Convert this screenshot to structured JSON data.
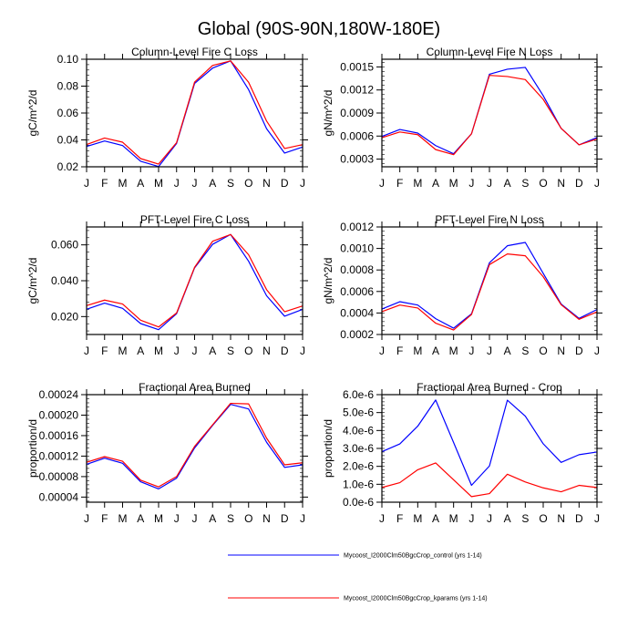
{
  "figure": {
    "title": "Global (90S-90N,180W-180E)"
  },
  "legend": {
    "placement": "bottom-center",
    "entries": [
      {
        "label": "Mycoost_I2000Clm50BgcCrop_control (yrs 1-14)",
        "color": "#0000ff"
      },
      {
        "label": "Mycoost_I2000Clm50BgcCrop_kparams (yrs 1-14)",
        "color": "#ff0000"
      }
    ]
  },
  "chart_data": [
    {
      "type": "line",
      "title": "Column-Level Fire C Loss",
      "xlabel": "",
      "ylabel": "gC/m^2/d",
      "categories": [
        "J",
        "F",
        "M",
        "A",
        "M",
        "J",
        "J",
        "A",
        "S",
        "O",
        "N",
        "D",
        "J"
      ],
      "ylim": [
        0.02,
        0.1
      ],
      "yticks": [
        0.02,
        0.04,
        0.06,
        0.08,
        0.1
      ],
      "ytick_labels": [
        "0.02",
        "0.04",
        "0.06",
        "0.08",
        "0.10"
      ],
      "yminor_per_major": 4,
      "series": [
        {
          "name": "Mycoost_I2000Clm50BgcCrop_control (yrs 1-14)",
          "color": "#0000ff",
          "values": [
            0.0351,
            0.0392,
            0.0358,
            0.0241,
            0.0202,
            0.0374,
            0.082,
            0.0934,
            0.0988,
            0.0774,
            0.0483,
            0.0302,
            0.0347
          ]
        },
        {
          "name": "Mycoost_I2000Clm50BgcCrop_kparams (yrs 1-14)",
          "color": "#ff0000",
          "values": [
            0.0366,
            0.0414,
            0.0383,
            0.0261,
            0.022,
            0.038,
            0.083,
            0.0954,
            0.0988,
            0.0829,
            0.054,
            0.0336,
            0.0365
          ]
        }
      ]
    },
    {
      "type": "line",
      "title": "Column-Level Fire N Loss",
      "xlabel": "",
      "ylabel": "gN/m^2/d",
      "categories": [
        "J",
        "F",
        "M",
        "A",
        "M",
        "J",
        "J",
        "A",
        "S",
        "O",
        "N",
        "D",
        "J"
      ],
      "ylim": [
        0.0002,
        0.0016
      ],
      "yticks": [
        0.0003,
        0.0006,
        0.0009,
        0.0012,
        0.0015
      ],
      "ytick_labels": [
        "0.0003",
        "0.0006",
        "0.0009",
        "0.0012",
        "0.0015"
      ],
      "yminor_per_major": 4,
      "series": [
        {
          "name": "Mycoost_I2000Clm50BgcCrop_control (yrs 1-14)",
          "color": "#0000ff",
          "values": [
            0.000595,
            0.000686,
            0.000639,
            0.000476,
            0.00037,
            0.00063,
            0.001405,
            0.00147,
            0.001494,
            0.001126,
            0.0007,
            0.000486,
            0.000581
          ]
        },
        {
          "name": "Mycoost_I2000Clm50BgcCrop_kparams (yrs 1-14)",
          "color": "#ff0000",
          "values": [
            0.000579,
            0.000653,
            0.000618,
            0.000424,
            0.000358,
            0.00063,
            0.00139,
            0.001375,
            0.001335,
            0.001078,
            0.0007,
            0.000486,
            0.000562
          ]
        }
      ]
    },
    {
      "type": "line",
      "title": "PFT-Level Fire C Loss",
      "xlabel": "",
      "ylabel": "gC/m^2/d",
      "categories": [
        "J",
        "F",
        "M",
        "A",
        "M",
        "J",
        "J",
        "A",
        "S",
        "O",
        "N",
        "D",
        "J"
      ],
      "ylim": [
        0.01,
        0.07
      ],
      "yticks": [
        0.02,
        0.04,
        0.06
      ],
      "ytick_labels": [
        "0.020",
        "0.040",
        "0.060"
      ],
      "yminor_per_major": 4,
      "series": [
        {
          "name": "Mycoost_I2000Clm50BgcCrop_control (yrs 1-14)",
          "color": "#0000ff",
          "values": [
            0.0241,
            0.0275,
            0.0246,
            0.0161,
            0.0127,
            0.0216,
            0.0472,
            0.0603,
            0.0658,
            0.0509,
            0.0316,
            0.0202,
            0.024
          ]
        },
        {
          "name": "Mycoost_I2000Clm50BgcCrop_kparams (yrs 1-14)",
          "color": "#ff0000",
          "values": [
            0.0261,
            0.0292,
            0.027,
            0.018,
            0.0142,
            0.022,
            0.0475,
            0.062,
            0.0658,
            0.0545,
            0.035,
            0.0227,
            0.0259
          ]
        }
      ]
    },
    {
      "type": "line",
      "title": "PFT-Level Fire N Loss",
      "xlabel": "",
      "ylabel": "gN/m^2/d",
      "categories": [
        "J",
        "F",
        "M",
        "A",
        "M",
        "J",
        "J",
        "A",
        "S",
        "O",
        "N",
        "D",
        "J"
      ],
      "ylim": [
        0.0002,
        0.0012
      ],
      "yticks": [
        0.0002,
        0.0004,
        0.0006,
        0.0008,
        0.001,
        0.0012
      ],
      "ytick_labels": [
        "0.0002",
        "0.0004",
        "0.0006",
        "0.0008",
        "0.0010",
        "0.0012"
      ],
      "yminor_per_major": 4,
      "series": [
        {
          "name": "Mycoost_I2000Clm50BgcCrop_control (yrs 1-14)",
          "color": "#0000ff",
          "values": [
            0.000437,
            0.000505,
            0.000474,
            0.000347,
            0.000259,
            0.000392,
            0.000867,
            0.001025,
            0.001056,
            0.000768,
            0.000483,
            0.00035,
            0.000432
          ]
        },
        {
          "name": "Mycoost_I2000Clm50BgcCrop_kparams (yrs 1-14)",
          "color": "#ff0000",
          "values": [
            0.000412,
            0.000474,
            0.000446,
            0.000305,
            0.000242,
            0.000386,
            0.00085,
            0.000949,
            0.000932,
            0.000737,
            0.000477,
            0.000341,
            0.00041
          ]
        }
      ]
    },
    {
      "type": "line",
      "title": "Fractional Area Burned",
      "xlabel": "",
      "ylabel": "proportion/d",
      "categories": [
        "J",
        "F",
        "M",
        "A",
        "M",
        "J",
        "J",
        "A",
        "S",
        "O",
        "N",
        "D",
        "J"
      ],
      "ylim": [
        3e-05,
        0.00024
      ],
      "yticks": [
        4e-05,
        8e-05,
        0.00012,
        0.00016,
        0.0002,
        0.00024
      ],
      "ytick_labels": [
        "0.00004",
        "0.00008",
        "0.00012",
        "0.00016",
        "0.00020",
        "0.00024"
      ],
      "yminor_per_major": 4,
      "series": [
        {
          "name": "Mycoost_I2000Clm50BgcCrop_control (yrs 1-14)",
          "color": "#0000ff",
          "values": [
            0.000104,
            0.000116,
            0.000106,
            7e-05,
            5.6e-05,
            7.7e-05,
            0.000136,
            0.00018,
            0.000221,
            0.000212,
            0.000147,
            9.8e-05,
            0.000103
          ]
        },
        {
          "name": "Mycoost_I2000Clm50BgcCrop_kparams (yrs 1-14)",
          "color": "#ff0000",
          "values": [
            0.000108,
            0.000119,
            0.00011,
            7.3e-05,
            6e-05,
            8e-05,
            0.000139,
            0.000181,
            0.000223,
            0.000222,
            0.000155,
            0.000103,
            0.000107
          ]
        }
      ]
    },
    {
      "type": "line",
      "title": "Fractional Area Burned - Crop",
      "xlabel": "",
      "ylabel": "proportion/d",
      "categories": [
        "J",
        "F",
        "M",
        "A",
        "M",
        "J",
        "J",
        "A",
        "S",
        "O",
        "N",
        "D",
        "J"
      ],
      "ylim": [
        0.0,
        6e-06
      ],
      "yticks": [
        0.0,
        1e-06,
        2e-06,
        3e-06,
        4e-06,
        5e-06,
        6e-06
      ],
      "ytick_labels": [
        "0.0e-6",
        "1.0e-6",
        "2.0e-6",
        "3.0e-6",
        "4.0e-6",
        "5.0e-6",
        "6.0e-6"
      ],
      "yminor_per_major": 4,
      "series": [
        {
          "name": "Mycoost_I2000Clm50BgcCrop_control (yrs 1-14)",
          "color": "#0000ff",
          "values": [
            2.82e-06,
            3.25e-06,
            4.24e-06,
            5.7e-06,
            3.33e-06,
            9.4e-07,
            2.02e-06,
            5.69e-06,
            4.8e-06,
            3.26e-06,
            2.22e-06,
            2.65e-06,
            2.8e-06
          ]
        },
        {
          "name": "Mycoost_I2000Clm50BgcCrop_kparams (yrs 1-14)",
          "color": "#ff0000",
          "values": [
            8.2e-07,
            1.09e-06,
            1.81e-06,
            2.19e-06,
            1.25e-06,
            3.1e-07,
            4.8e-07,
            1.56e-06,
            1.13e-06,
            8e-07,
            5.8e-07,
            9.4e-07,
            8.2e-07
          ]
        }
      ]
    }
  ]
}
